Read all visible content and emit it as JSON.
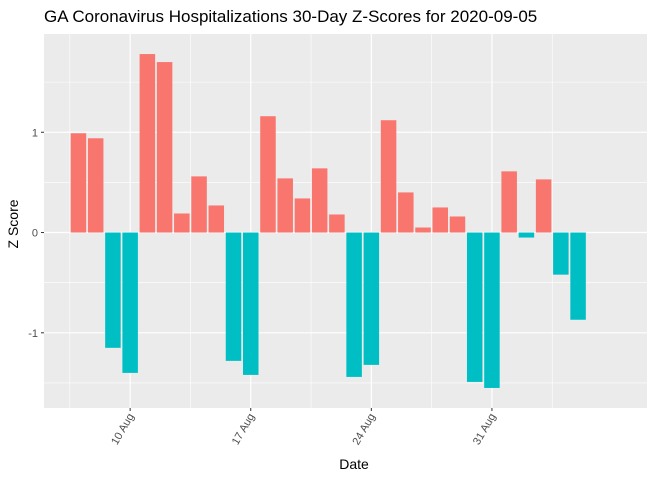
{
  "chart_data": {
    "type": "bar",
    "title": "GA Coronavirus Hospitalizations 30-Day Z-Scores for 2020-09-05",
    "xlabel": "Date",
    "ylabel": "Z Score",
    "x_ticks": [
      {
        "label": "10 Aug",
        "date": "2020-08-10"
      },
      {
        "label": "17 Aug",
        "date": "2020-08-17"
      },
      {
        "label": "24 Aug",
        "date": "2020-08-24"
      },
      {
        "label": "31 Aug",
        "date": "2020-08-31"
      }
    ],
    "y_ticks": [
      {
        "label": "1",
        "value": 1
      },
      {
        "label": "0",
        "value": 0
      },
      {
        "label": "-1",
        "value": -1
      }
    ],
    "ylim": [
      -1.75,
      1.98
    ],
    "xlim": [
      "2020-08-05",
      "2020-09-09"
    ],
    "grid": true,
    "legend": "none",
    "colors": {
      "positive": "#F8766D",
      "negative": "#00BFC4",
      "panel": "#EBEBEB",
      "grid": "#FFFFFF"
    },
    "dates": [
      "2020-08-07",
      "2020-08-08",
      "2020-08-09",
      "2020-08-10",
      "2020-08-11",
      "2020-08-12",
      "2020-08-13",
      "2020-08-14",
      "2020-08-15",
      "2020-08-16",
      "2020-08-17",
      "2020-08-18",
      "2020-08-19",
      "2020-08-20",
      "2020-08-21",
      "2020-08-22",
      "2020-08-23",
      "2020-08-24",
      "2020-08-25",
      "2020-08-26",
      "2020-08-27",
      "2020-08-28",
      "2020-08-29",
      "2020-08-30",
      "2020-08-31",
      "2020-09-01",
      "2020-09-02",
      "2020-09-03",
      "2020-09-04",
      "2020-09-05"
    ],
    "values": [
      0.99,
      0.94,
      -1.15,
      -1.4,
      1.78,
      1.7,
      0.19,
      0.56,
      0.27,
      -1.28,
      -1.42,
      1.16,
      0.54,
      0.34,
      0.64,
      0.18,
      -1.44,
      -1.32,
      1.12,
      0.4,
      0.05,
      0.25,
      0.16,
      -1.49,
      -1.55,
      0.61,
      -0.05,
      0.53,
      -0.42,
      -0.87
    ]
  }
}
